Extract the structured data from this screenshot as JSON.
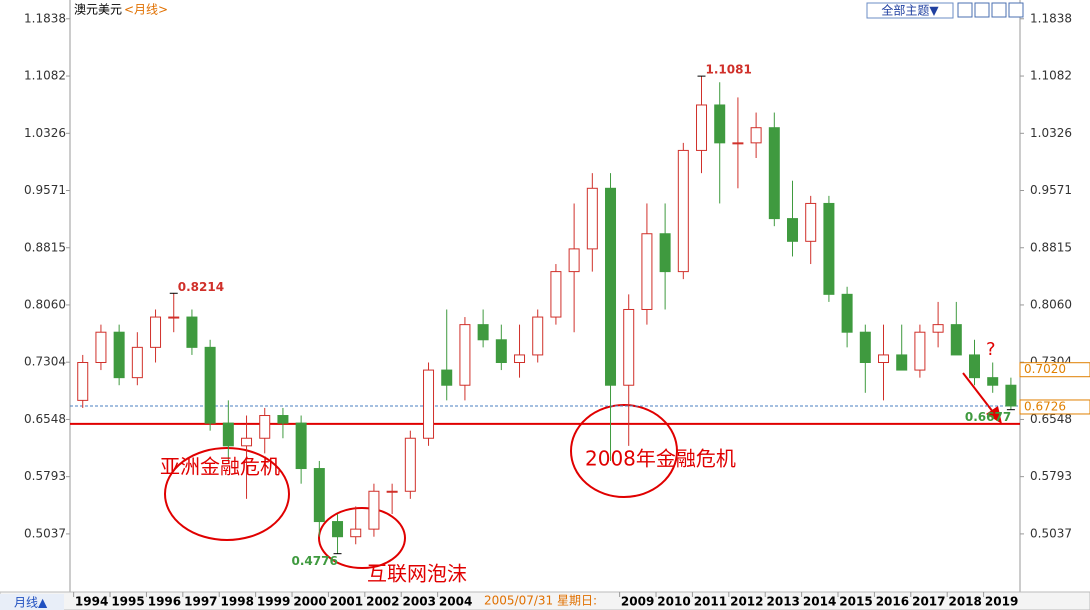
{
  "chart_data": {
    "type": "candlestick",
    "title": "澳元美元",
    "period": "<月线>",
    "theme_button": "全部主题▼",
    "period_button": "月线▲",
    "cursor_label": "2005/07/31 星期日:",
    "x": [
      1994.25,
      1994.75,
      1995.25,
      1995.75,
      1996.25,
      1996.75,
      1997.25,
      1997.75,
      1998.25,
      1998.75,
      1999.25,
      1999.75,
      2000.25,
      2000.75,
      2001.25,
      2001.75,
      2002.25,
      2002.75,
      2003.25,
      2003.75,
      2004.25,
      2004.75,
      2005.25,
      2005.75,
      2006.25,
      2006.75,
      2007.25,
      2007.75,
      2008.25,
      2008.75,
      2009.25,
      2009.75,
      2010.25,
      2010.75,
      2011.25,
      2011.75,
      2012.25,
      2012.75,
      2013.25,
      2013.75,
      2014.25,
      2014.75,
      2015.25,
      2015.75,
      2016.25,
      2016.75,
      2017.25,
      2017.75,
      2018.25,
      2018.75,
      2019.25,
      2019.75
    ],
    "open": [
      0.68,
      0.73,
      0.77,
      0.71,
      0.75,
      0.79,
      0.79,
      0.75,
      0.65,
      0.62,
      0.63,
      0.66,
      0.65,
      0.59,
      0.52,
      0.5,
      0.51,
      0.56,
      0.56,
      0.63,
      0.72,
      0.7,
      0.78,
      0.76,
      0.73,
      0.74,
      0.79,
      0.85,
      0.88,
      0.96,
      0.7,
      0.8,
      0.9,
      0.85,
      1.01,
      1.07,
      1.02,
      1.02,
      1.04,
      0.92,
      0.89,
      0.94,
      0.82,
      0.77,
      0.73,
      0.74,
      0.72,
      0.77,
      0.78,
      0.74,
      0.71,
      0.7
    ],
    "high": [
      0.74,
      0.78,
      0.78,
      0.77,
      0.8,
      0.8214,
      0.8,
      0.76,
      0.68,
      0.66,
      0.67,
      0.67,
      0.66,
      0.6,
      0.53,
      0.54,
      0.57,
      0.57,
      0.64,
      0.73,
      0.8,
      0.79,
      0.8,
      0.78,
      0.78,
      0.8,
      0.86,
      0.94,
      0.98,
      0.98,
      0.82,
      0.94,
      0.94,
      1.02,
      1.1081,
      1.1,
      1.08,
      1.06,
      1.06,
      0.97,
      0.95,
      0.95,
      0.83,
      0.78,
      0.78,
      0.78,
      0.78,
      0.81,
      0.81,
      0.76,
      0.73,
      0.71
    ],
    "low": [
      0.67,
      0.72,
      0.7,
      0.7,
      0.73,
      0.77,
      0.74,
      0.64,
      0.6,
      0.55,
      0.61,
      0.63,
      0.57,
      0.5,
      0.4776,
      0.49,
      0.5,
      0.53,
      0.55,
      0.62,
      0.68,
      0.68,
      0.75,
      0.72,
      0.71,
      0.73,
      0.78,
      0.77,
      0.85,
      0.6,
      0.62,
      0.78,
      0.8,
      0.84,
      0.98,
      0.94,
      0.96,
      1.0,
      0.91,
      0.87,
      0.86,
      0.81,
      0.75,
      0.69,
      0.68,
      0.72,
      0.71,
      0.75,
      0.74,
      0.7,
      0.69,
      0.6677
    ],
    "close": [
      0.73,
      0.77,
      0.71,
      0.75,
      0.79,
      0.79,
      0.75,
      0.65,
      0.62,
      0.63,
      0.66,
      0.65,
      0.59,
      0.52,
      0.5,
      0.51,
      0.56,
      0.56,
      0.63,
      0.72,
      0.7,
      0.78,
      0.76,
      0.73,
      0.74,
      0.79,
      0.85,
      0.88,
      0.96,
      0.7,
      0.8,
      0.9,
      0.85,
      1.01,
      1.07,
      1.02,
      1.02,
      1.04,
      0.92,
      0.89,
      0.94,
      0.82,
      0.77,
      0.73,
      0.74,
      0.72,
      0.77,
      0.78,
      0.74,
      0.71,
      0.7,
      0.6726
    ],
    "up_color": "#d0302a",
    "down_color": "#3f9a3f",
    "xlim": [
      1993.9,
      2020.0
    ],
    "ylim": [
      0.427,
      1.202
    ],
    "xticks": [
      1994,
      1995,
      1996,
      1997,
      1998,
      1999,
      2000,
      2001,
      2002,
      2003,
      2004,
      2009,
      2010,
      2011,
      2012,
      2013,
      2014,
      2015,
      2016,
      2017,
      2018,
      2019
    ],
    "yticks": [
      1.1838,
      1.1082,
      1.0326,
      0.9571,
      0.8815,
      {
        "value": 0.806,
        "label": "0.8060"
      },
      0.7304,
      0.6548,
      0.5793,
      0.5037
    ],
    "extreme_labels": [
      {
        "value": 0.8214,
        "x": 1996.75,
        "color": "#d0302a"
      },
      {
        "value": 1.1081,
        "x": 2011.25,
        "color": "#d0302a"
      },
      {
        "value": 0.4776,
        "x": 2001.25,
        "color": "#3f9a3f"
      },
      {
        "value": 0.6677,
        "x": 2019.75,
        "color": "#3f9a3f"
      }
    ],
    "price_tags": [
      {
        "value": 0.702,
        "label": "0.7020"
      },
      {
        "value": 0.6726,
        "label": "0.6726"
      }
    ],
    "reference_lines": [
      {
        "value": 0.649,
        "color": "#e00000",
        "dashed": false
      },
      {
        "value": 0.6726,
        "color": "#4a7fc0",
        "dashed": true
      }
    ],
    "annotations": [
      "亚洲金融危机",
      "互联网泡沫",
      "2008年金融危机",
      "?"
    ]
  }
}
